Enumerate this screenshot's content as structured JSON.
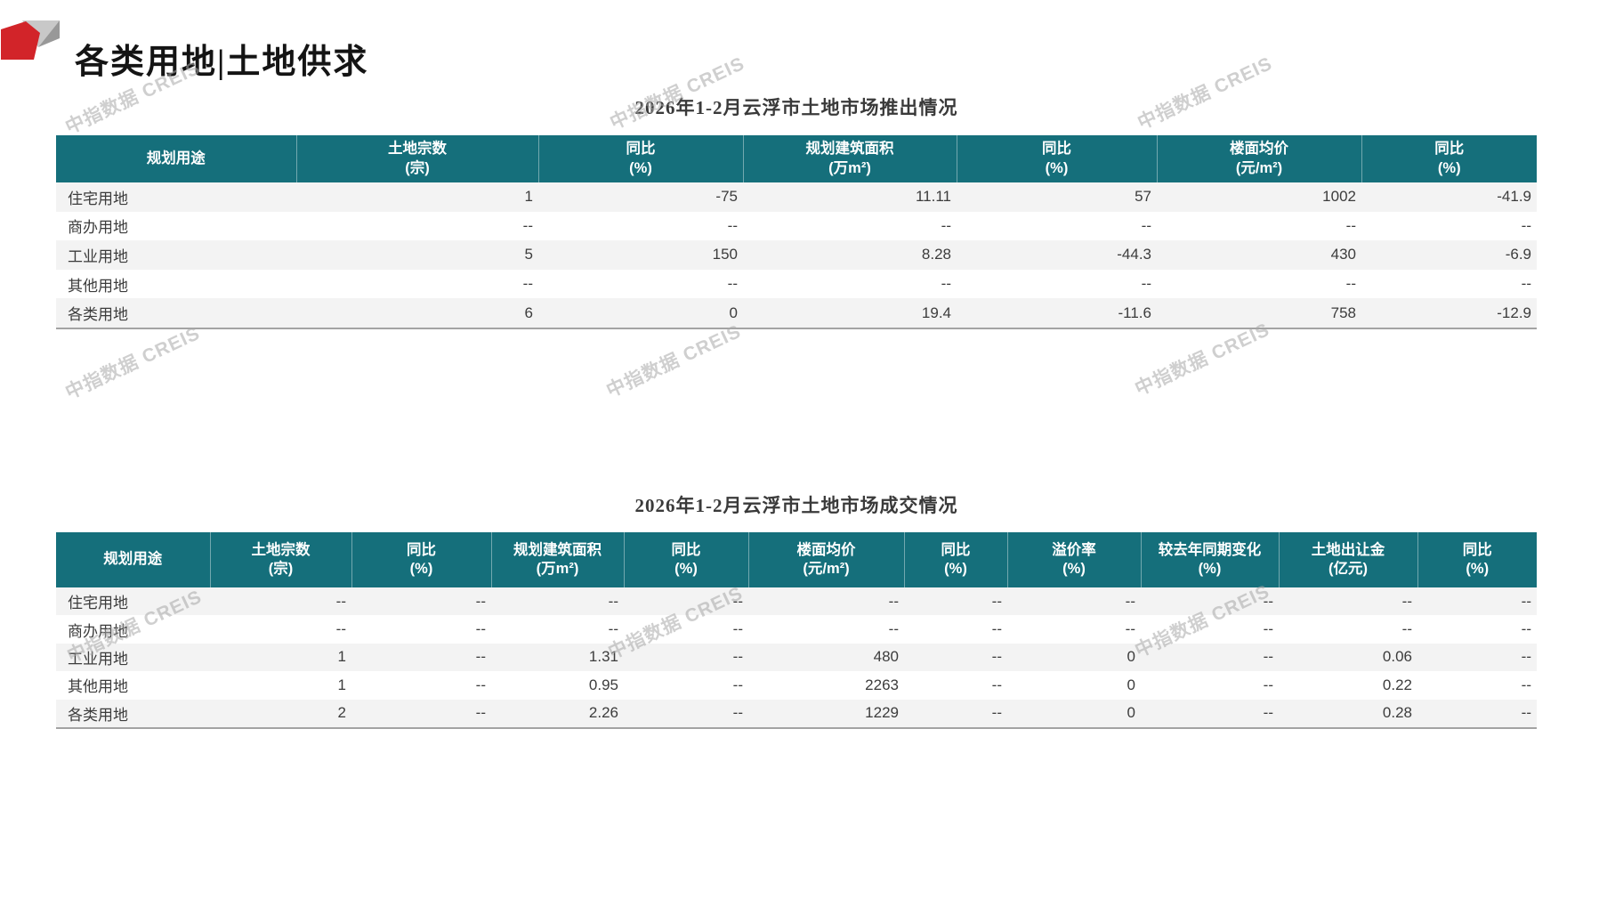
{
  "page": {
    "heading": "各类用地|土地供求",
    "watermark_text": "中指数据 CREIS",
    "accent_teal": "#156f7b",
    "logo_colors": {
      "red": "#d22429",
      "light_gray": "#c8c8c8",
      "dark_gray": "#989898"
    }
  },
  "table1": {
    "title": "2026年1-2月云浮市土地市场推出情况",
    "columns": [
      {
        "line1": "规划用途",
        "line2": ""
      },
      {
        "line1": "土地宗数",
        "line2": "(宗)"
      },
      {
        "line1": "同比",
        "line2": "(%)"
      },
      {
        "line1": "规划建筑面积",
        "line2": "(万m²)"
      },
      {
        "line1": "同比",
        "line2": "(%)"
      },
      {
        "line1": "楼面均价",
        "line2": "(元/m²)"
      },
      {
        "line1": "同比",
        "line2": "(%)"
      }
    ],
    "rows": [
      [
        "住宅用地",
        "1",
        "-75",
        "11.11",
        "57",
        "1002",
        "-41.9"
      ],
      [
        "商办用地",
        "--",
        "--",
        "--",
        "--",
        "--",
        "--"
      ],
      [
        "工业用地",
        "5",
        "150",
        "8.28",
        "-44.3",
        "430",
        "-6.9"
      ],
      [
        "其他用地",
        "--",
        "--",
        "--",
        "--",
        "--",
        "--"
      ],
      [
        "各类用地",
        "6",
        "0",
        "19.4",
        "-11.6",
        "758",
        "-12.9"
      ]
    ]
  },
  "table2": {
    "title": "2026年1-2月云浮市土地市场成交情况",
    "columns": [
      {
        "line1": "规划用途",
        "line2": ""
      },
      {
        "line1": "土地宗数",
        "line2": "(宗)"
      },
      {
        "line1": "同比",
        "line2": "(%)"
      },
      {
        "line1": "规划建筑面积",
        "line2": "(万m²)"
      },
      {
        "line1": "同比",
        "line2": "(%)"
      },
      {
        "line1": "楼面均价",
        "line2": "(元/m²)"
      },
      {
        "line1": "同比",
        "line2": "(%)"
      },
      {
        "line1": "溢价率",
        "line2": "(%)"
      },
      {
        "line1": "较去年同期变化",
        "line2": "(%)"
      },
      {
        "line1": "土地出让金",
        "line2": "(亿元)"
      },
      {
        "line1": "同比",
        "line2": "(%)"
      }
    ],
    "rows": [
      [
        "住宅用地",
        "--",
        "--",
        "--",
        "--",
        "--",
        "--",
        "--",
        "--",
        "--",
        "--"
      ],
      [
        "商办用地",
        "--",
        "--",
        "--",
        "--",
        "--",
        "--",
        "--",
        "--",
        "--",
        "--"
      ],
      [
        "工业用地",
        "1",
        "--",
        "1.31",
        "--",
        "480",
        "--",
        "0",
        "--",
        "0.06",
        "--"
      ],
      [
        "其他用地",
        "1",
        "--",
        "0.95",
        "--",
        "2263",
        "--",
        "0",
        "--",
        "0.22",
        "--"
      ],
      [
        "各类用地",
        "2",
        "--",
        "2.26",
        "--",
        "1229",
        "--",
        "0",
        "--",
        "0.28",
        "--"
      ]
    ]
  }
}
